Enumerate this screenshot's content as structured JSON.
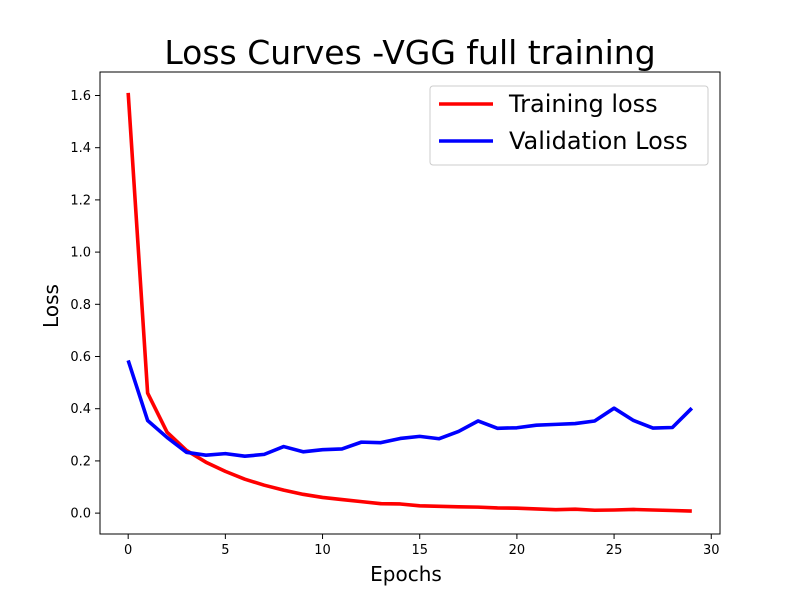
{
  "chart_data": {
    "type": "line",
    "title": "Loss Curves -VGG full training",
    "xlabel": "Epochs",
    "ylabel": "Loss",
    "xlim": [
      -1.45,
      30.45
    ],
    "ylim": [
      -0.08,
      1.69
    ],
    "xticks": [
      0,
      5,
      10,
      15,
      20,
      25,
      30
    ],
    "xtick_labels": [
      "0",
      "5",
      "10",
      "15",
      "20",
      "25",
      "30"
    ],
    "yticks": [
      0.0,
      0.2,
      0.4,
      0.6,
      0.8,
      1.0,
      1.2,
      1.4,
      1.6
    ],
    "ytick_labels": [
      "0.0",
      "0.2",
      "0.4",
      "0.6",
      "0.8",
      "1.0",
      "1.2",
      "1.4",
      "1.6"
    ],
    "grid": false,
    "legend_position": "top-right",
    "x": [
      0,
      1,
      2,
      3,
      4,
      5,
      6,
      7,
      8,
      9,
      10,
      11,
      12,
      13,
      14,
      15,
      16,
      17,
      18,
      19,
      20,
      21,
      22,
      23,
      24,
      25,
      26,
      27,
      28,
      29
    ],
    "series": [
      {
        "name": "Training loss",
        "color": "#ff0000",
        "values": [
          1.61,
          0.46,
          0.31,
          0.24,
          0.195,
          0.16,
          0.13,
          0.107,
          0.088,
          0.072,
          0.06,
          0.052,
          0.044,
          0.036,
          0.035,
          0.028,
          0.026,
          0.024,
          0.023,
          0.02,
          0.019,
          0.016,
          0.013,
          0.015,
          0.011,
          0.012,
          0.014,
          0.012,
          0.01,
          0.008
        ]
      },
      {
        "name": "Validation Loss",
        "color": "#0000ff",
        "values": [
          0.585,
          0.355,
          0.29,
          0.233,
          0.222,
          0.228,
          0.218,
          0.225,
          0.255,
          0.235,
          0.243,
          0.246,
          0.272,
          0.27,
          0.286,
          0.294,
          0.285,
          0.313,
          0.353,
          0.325,
          0.327,
          0.337,
          0.34,
          0.343,
          0.353,
          0.402,
          0.355,
          0.326,
          0.328,
          0.402
        ]
      }
    ]
  }
}
